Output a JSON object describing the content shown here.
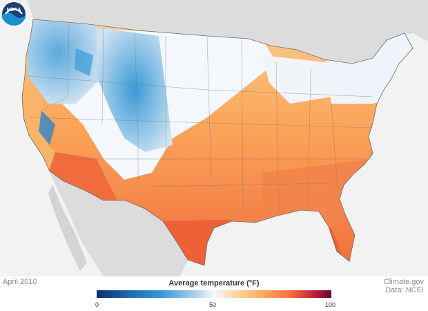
{
  "map": {
    "background": "#f2f2f2",
    "land_gray": "#dcdcdc",
    "period_label": "April 2010",
    "credit_line1": "Climate.gov",
    "credit_line2": "Data: NCEI"
  },
  "legend": {
    "title": "Average temperature (°F)",
    "ticks": [
      "0",
      "50",
      "100"
    ],
    "range": [
      0,
      100
    ]
  },
  "logo": {
    "text": "NOAA"
  },
  "colors": {
    "cold": "#1f6fb5",
    "cool": "#9cc9e8",
    "neutral": "#f4f7fb",
    "mild": "#fdd49a",
    "warm": "#fba55a",
    "hot": "#f06c3c"
  }
}
